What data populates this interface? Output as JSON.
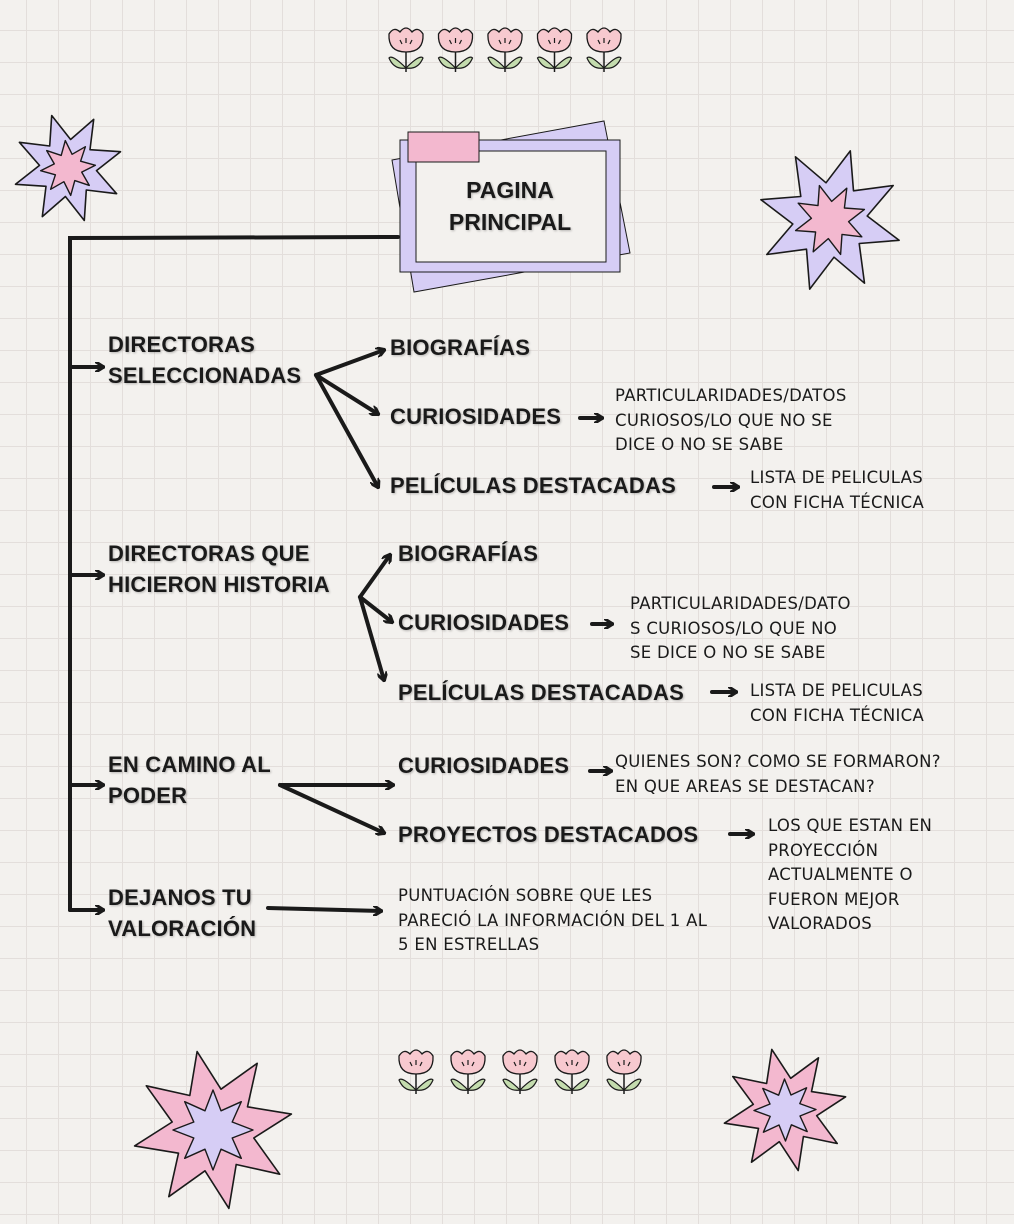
{
  "colors": {
    "lavender": "#d6cdf5",
    "pink": "#f3b8cf",
    "flower_pink": "#f7c9cf",
    "leaf_green": "#c4dcae",
    "ink": "#1a1a1a"
  },
  "title": "PAGINA\nPRINCIPAL",
  "sections": [
    {
      "heading": "DIRECTORAS\nSELECCIONADAS",
      "items": [
        {
          "label": "BIOGRAFÍAS",
          "desc": ""
        },
        {
          "label": "CURIOSIDADES",
          "desc": "PARTICULARIDADES/DATOS\nCURIOSOS/LO QUE NO SE\nDICE O NO SE SABE"
        },
        {
          "label": "PELÍCULAS DESTACADAS",
          "desc": "LISTA DE PELICULAS\nCON FICHA TÉCNICA"
        }
      ]
    },
    {
      "heading": "DIRECTORAS QUE\nHICIERON HISTORIA",
      "items": [
        {
          "label": "BIOGRAFÍAS",
          "desc": ""
        },
        {
          "label": "CURIOSIDADES",
          "desc": "PARTICULARIDADES/DATO\nS CURIOSOS/LO QUE NO\nSE DICE O NO SE SABE"
        },
        {
          "label": "PELÍCULAS DESTACADAS",
          "desc": "LISTA DE PELICULAS\nCON FICHA TÉCNICA"
        }
      ]
    },
    {
      "heading": "EN CAMINO AL\nPODER",
      "items": [
        {
          "label": "CURIOSIDADES",
          "desc": "QUIENES SON? COMO SE FORMARON?\nEN QUE AREAS SE DESTACAN?"
        },
        {
          "label": "PROYECTOS DESTACADOS",
          "desc": "LOS QUE ESTAN EN\nPROYECCIÓN\nACTUALMENTE O\nFUERON MEJOR\nVALORADOS"
        }
      ]
    },
    {
      "heading": "DEJANOS TU\nVALORACIÓN",
      "desc": "PUNTUACIÓN SOBRE QUE LES\nPARECIÓ LA INFORMACIÓN DEL 1 AL\n5 EN ESTRELLAS"
    }
  ],
  "decorations": {
    "flower_icon": "tulip-flower",
    "star_icon": "burst-star",
    "flowers_top": 5,
    "flowers_bottom": 5
  }
}
